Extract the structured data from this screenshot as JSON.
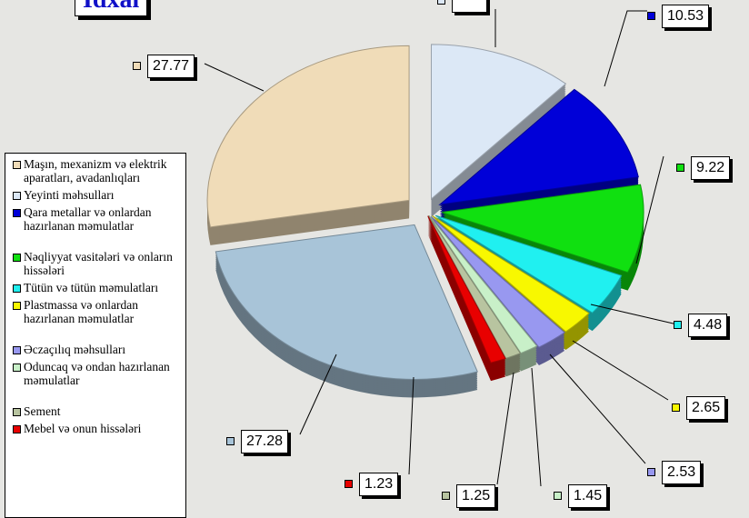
{
  "title": "İdxal",
  "chart_data": {
    "type": "pie",
    "style": "3d-exploded",
    "start": "top",
    "direction": "clockwise",
    "slices": [
      {
        "name": "Yeyinti məhsulları",
        "value": null,
        "color": "#dce8f6"
      },
      {
        "name": "Qara metallar və onlardan hazırlanan məmulatlar",
        "value": 10.53,
        "color": "#0000d8"
      },
      {
        "name": "Nəqliyyat vasitələri və onların hissələri",
        "value": 9.22,
        "color": "#10e010"
      },
      {
        "name": "Tütün və tütün məmulatları",
        "value": 4.48,
        "color": "#20f0f0"
      },
      {
        "name": "Plastmassa və onlardan hazırlanan məmulatlar",
        "value": 2.65,
        "color": "#f8f800"
      },
      {
        "name": "Əczaçılıq məhsulları",
        "value": 2.53,
        "color": "#9898f0"
      },
      {
        "name": "Oduncaq və ondan hazırlanan məmulatlar",
        "value": 1.45,
        "color": "#c8f0c8"
      },
      {
        "name": "Sement",
        "value": 1.25,
        "color": "#b8c4a0"
      },
      {
        "name": "Mebel və onun hissələri",
        "value": 1.23,
        "color": "#e80000"
      },
      {
        "name": "",
        "value": 27.28,
        "color": "#a8c4d8"
      },
      {
        "name": "Maşın, mexanizm və elektrik aparatları, avadanlıqları",
        "value": 27.77,
        "color": "#f0dcb8"
      }
    ],
    "legend_order": [
      10,
      0,
      1,
      2,
      3,
      4,
      5,
      6,
      7,
      8
    ],
    "legend_placement": "left"
  }
}
